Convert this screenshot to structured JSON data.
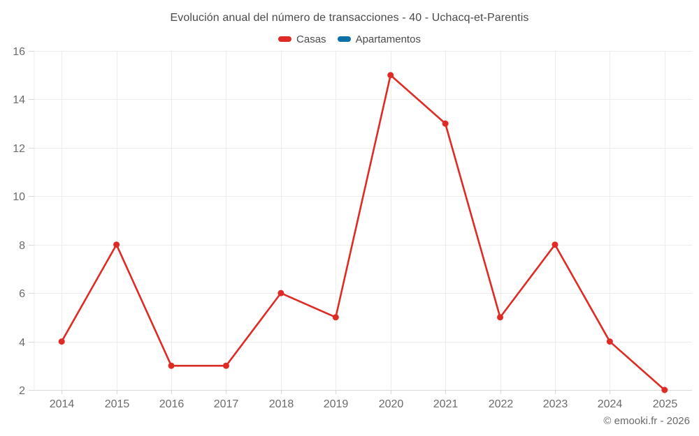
{
  "header": {
    "title": "Evolución anual del número de transacciones - 40 - Uchacq-et-Parentis"
  },
  "legend": {
    "items": [
      {
        "label": "Casas",
        "color": "#df2b25"
      },
      {
        "label": "Apartamentos",
        "color": "#0f6fa8"
      }
    ]
  },
  "footer": {
    "copyright": "© emooki.fr - 2026"
  },
  "chart_data": {
    "type": "line",
    "title": "Evolución anual del número de transacciones - 40 - Uchacq-et-Parentis",
    "categories": [
      "2014",
      "2015",
      "2016",
      "2017",
      "2018",
      "2019",
      "2020",
      "2021",
      "2022",
      "2023",
      "2024",
      "2025"
    ],
    "series": [
      {
        "name": "Casas",
        "color": "#df2b25",
        "values": [
          4,
          8,
          3,
          3,
          6,
          5,
          15,
          13,
          5,
          8,
          4,
          2
        ]
      },
      {
        "name": "Apartamentos",
        "color": "#0f6fa8",
        "values": []
      }
    ],
    "xlabel": "",
    "ylabel": "",
    "ylim": [
      2,
      16
    ],
    "y_ticks": [
      2,
      4,
      6,
      8,
      10,
      12,
      14,
      16
    ],
    "grid": true,
    "legend_position": "top",
    "grid_color": "#ededed",
    "axis_line_color": "#d9d9d9",
    "axis_text_color": "#6b6b6b",
    "marker_radius": 4.5,
    "line_width": 2.6
  }
}
